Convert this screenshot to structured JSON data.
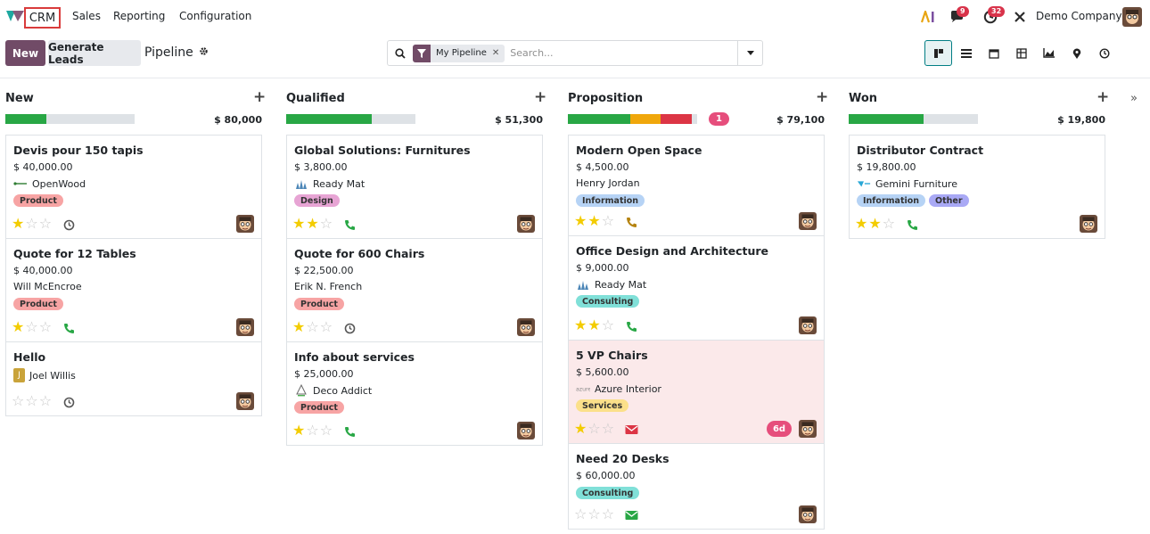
{
  "nav": {
    "app_name": "CRM",
    "menus": [
      "Sales",
      "Reporting",
      "Configuration"
    ],
    "messages_count": "9",
    "activities_count": "32",
    "company": "Demo Company"
  },
  "control": {
    "new_label": "New",
    "generate_label": "Generate Leads",
    "breadcrumb": "Pipeline",
    "facet_label": "My Pipeline",
    "search_placeholder": "Search..."
  },
  "columns": [
    {
      "title": "New",
      "total": "$ 80,000",
      "count": "",
      "progress": [
        {
          "value": 0.32,
          "color": "#28a745"
        }
      ],
      "cards": [
        {
          "title": "Devis pour 150 tapis",
          "amount": "$ 40,000.00",
          "contact": "OpenWood",
          "contact_icon": "openwood-logo",
          "tags": [
            {
              "label": "Product",
              "color": "#f7a4a4"
            }
          ],
          "stars": 1,
          "activity": "clock",
          "badge": "",
          "highlight": false
        },
        {
          "title": "Quote for 12 Tables",
          "amount": "$ 40,000.00",
          "contact": "Will McEncroe",
          "contact_icon": "",
          "tags": [
            {
              "label": "Product",
              "color": "#f7a4a4"
            }
          ],
          "stars": 1,
          "activity": "phone",
          "badge": "",
          "highlight": false
        },
        {
          "title": "Hello",
          "amount": "",
          "contact": "Joel Willis",
          "contact_icon": "initial-j",
          "tags": [],
          "stars": 0,
          "activity": "clock",
          "badge": "",
          "highlight": false
        }
      ]
    },
    {
      "title": "Qualified",
      "total": "$ 51,300",
      "count": "",
      "progress": [
        {
          "value": 0.66,
          "color": "#28a745"
        }
      ],
      "cards": [
        {
          "title": "Global Solutions: Furnitures",
          "amount": "$ 3,800.00",
          "contact": "Ready Mat",
          "contact_icon": "readymat-logo",
          "tags": [
            {
              "label": "Design",
              "color": "#e7a4d4"
            }
          ],
          "stars": 2,
          "activity": "phone",
          "badge": "",
          "highlight": false
        },
        {
          "title": "Quote for 600 Chairs",
          "amount": "$ 22,500.00",
          "contact": "Erik N. French",
          "contact_icon": "",
          "tags": [
            {
              "label": "Product",
              "color": "#f7a4a4"
            }
          ],
          "stars": 1,
          "activity": "clock",
          "badge": "",
          "highlight": false
        },
        {
          "title": "Info about services",
          "amount": "$ 25,000.00",
          "contact": "Deco Addict",
          "contact_icon": "decoaddict-logo",
          "tags": [
            {
              "label": "Product",
              "color": "#f7a4a4"
            }
          ],
          "stars": 1,
          "activity": "phone",
          "badge": "",
          "highlight": false
        }
      ]
    },
    {
      "title": "Proposition",
      "total": "$ 79,100",
      "count": "1",
      "progress": [
        {
          "value": 0.48,
          "color": "#28a745"
        },
        {
          "value": 0.24,
          "color": "#f0a70b"
        },
        {
          "value": 0.24,
          "color": "#dc3545"
        }
      ],
      "cards": [
        {
          "title": "Modern Open Space",
          "amount": "$ 4,500.00",
          "contact": "Henry Jordan",
          "contact_icon": "",
          "tags": [
            {
              "label": "Information",
              "color": "#b6d3f5"
            }
          ],
          "stars": 2,
          "activity": "phone-warn",
          "badge": "",
          "highlight": false
        },
        {
          "title": "Office Design and Architecture",
          "amount": "$ 9,000.00",
          "contact": "Ready Mat",
          "contact_icon": "readymat-logo",
          "tags": [
            {
              "label": "Consulting",
              "color": "#80e0d8"
            }
          ],
          "stars": 2,
          "activity": "phone",
          "badge": "",
          "highlight": false
        },
        {
          "title": "5 VP Chairs",
          "amount": "$ 5,600.00",
          "contact": "Azure Interior",
          "contact_icon": "azure-logo",
          "tags": [
            {
              "label": "Services",
              "color": "#fbe08a"
            }
          ],
          "stars": 1,
          "activity": "envelope-red",
          "badge": "6d",
          "highlight": true
        },
        {
          "title": "Need 20 Desks",
          "amount": "$ 60,000.00",
          "contact": "",
          "contact_icon": "",
          "tags": [
            {
              "label": "Consulting",
              "color": "#80e0d8"
            }
          ],
          "stars": 0,
          "activity": "envelope-green",
          "badge": "",
          "highlight": false
        }
      ]
    },
    {
      "title": "Won",
      "total": "$ 19,800",
      "count": "",
      "progress": [
        {
          "value": 0.58,
          "color": "#28a745"
        }
      ],
      "cards": [
        {
          "title": "Distributor Contract",
          "amount": "$ 19,800.00",
          "contact": "Gemini Furniture",
          "contact_icon": "gemini-logo",
          "tags": [
            {
              "label": "Information",
              "color": "#b6d3f5"
            },
            {
              "label": "Other",
              "color": "#a9a9f5"
            }
          ],
          "stars": 2,
          "activity": "phone",
          "badge": "",
          "highlight": false
        }
      ]
    }
  ],
  "colors": {
    "primary": "#714b67",
    "accent": "#017e84",
    "badge": "#e64e7c"
  }
}
